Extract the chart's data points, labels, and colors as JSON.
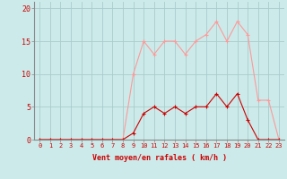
{
  "x": [
    0,
    1,
    2,
    3,
    4,
    5,
    6,
    7,
    8,
    9,
    10,
    11,
    12,
    13,
    14,
    15,
    16,
    17,
    18,
    19,
    20,
    21,
    22,
    23
  ],
  "wind_avg": [
    0,
    0,
    0,
    0,
    0,
    0,
    0,
    0,
    0,
    1,
    4,
    5,
    4,
    5,
    4,
    5,
    5,
    7,
    5,
    7,
    3,
    0,
    0,
    0
  ],
  "wind_gust": [
    0,
    0,
    0,
    0,
    0,
    0,
    0,
    0,
    0,
    10,
    15,
    13,
    15,
    15,
    13,
    15,
    16,
    18,
    15,
    18,
    16,
    6,
    6,
    0
  ],
  "bg_color": "#cceaea",
  "grid_color": "#aacccc",
  "line_avg_color": "#cc0000",
  "line_gust_color": "#ff9999",
  "xlabel": "Vent moyen/en rafales ( km/h )",
  "yticks": [
    0,
    5,
    10,
    15,
    20
  ],
  "xticks": [
    0,
    1,
    2,
    3,
    4,
    5,
    6,
    7,
    8,
    9,
    10,
    11,
    12,
    13,
    14,
    15,
    16,
    17,
    18,
    19,
    20,
    21,
    22,
    23
  ],
  "ylim": [
    0,
    21
  ],
  "xlim": [
    -0.5,
    23.5
  ],
  "ytick_fontsize": 6,
  "xtick_fontsize": 5,
  "xlabel_fontsize": 6
}
